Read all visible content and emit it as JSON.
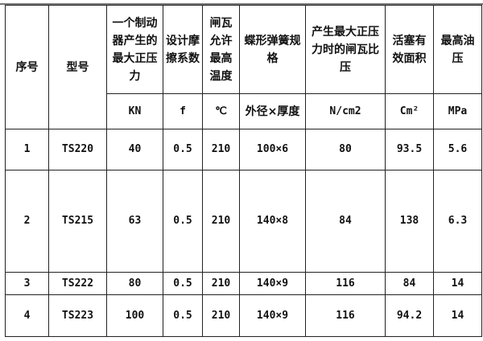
{
  "headers": [
    "序号",
    "型号",
    "一个制动器产生的最大正压力",
    "设计摩擦系数",
    "闸瓦允许最高温度",
    "蝶形弹簧规格",
    "产生最大正压力时的闸瓦比压",
    "活塞有效面积",
    "最高油压"
  ],
  "units": [
    "KN",
    "f",
    "℃",
    "外径×厚度",
    "N/cm2",
    "Cm²",
    "MPa"
  ],
  "rows": [
    [
      "1",
      "TS220",
      "40",
      "0.5",
      "210",
      "100×6",
      "80",
      "93.5",
      "5.6"
    ],
    [
      "2",
      "TS215",
      "63",
      "0.5",
      "210",
      "140×8",
      "84",
      "138",
      "6.3"
    ],
    [
      "3",
      "TS222",
      "80",
      "0.5",
      "210",
      "140×9",
      "116",
      "84",
      "14"
    ],
    [
      "4",
      "TS223",
      "100",
      "0.5",
      "210",
      "140×9",
      "116",
      "94.2",
      "14"
    ]
  ]
}
